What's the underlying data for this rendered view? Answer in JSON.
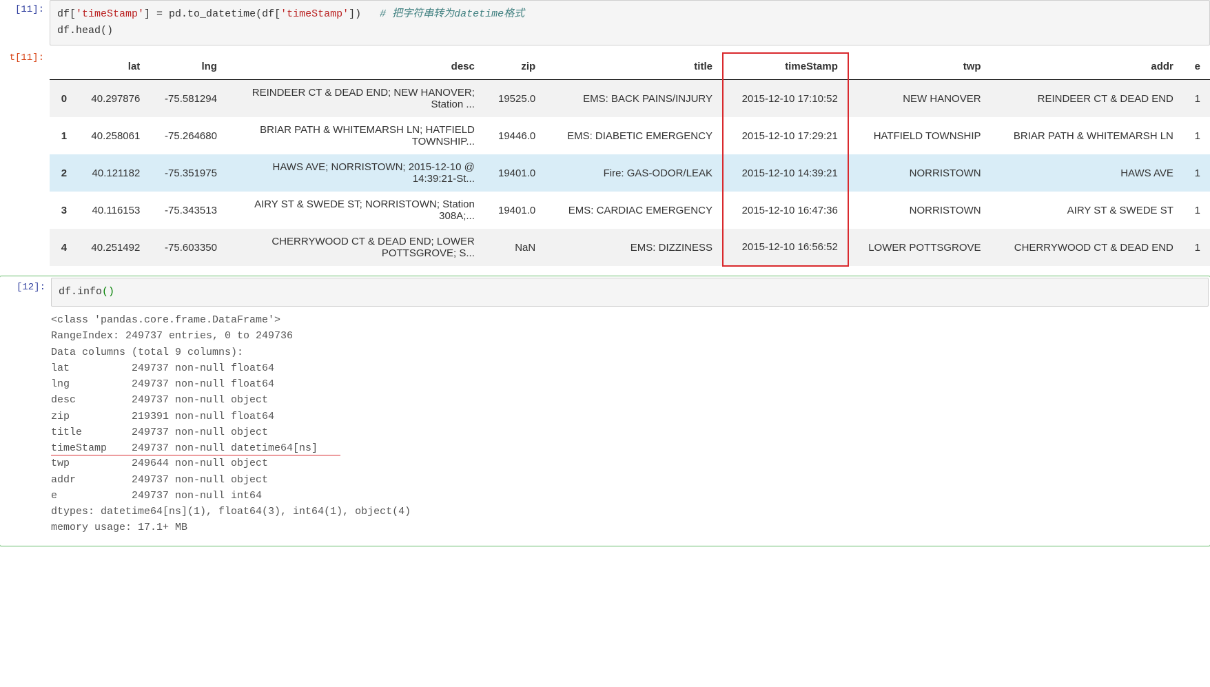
{
  "cell11": {
    "in_prompt": "[11]:",
    "out_prompt": "t[11]:",
    "code_line1": {
      "pre": "df[",
      "s1": "'timeStamp'",
      "mid1": "] = pd.to_datetime(df[",
      "s2": "'timeStamp'",
      "mid2": "])   ",
      "comment": "# 把字符串转为datetime格式"
    },
    "code_line2": "df.head()",
    "table": {
      "columns": [
        "",
        "lat",
        "lng",
        "desc",
        "zip",
        "title",
        "timeStamp",
        "twp",
        "addr",
        "e"
      ],
      "highlight_col": "timeStamp",
      "highlight_row_idx": 2,
      "rows": [
        {
          "idx": "0",
          "lat": "40.297876",
          "lng": "-75.581294",
          "desc": "REINDEER CT & DEAD END; NEW HANOVER; Station ...",
          "zip": "19525.0",
          "title": "EMS: BACK PAINS/INJURY",
          "timeStamp": "2015-12-10 17:10:52",
          "twp": "NEW HANOVER",
          "addr": "REINDEER CT & DEAD END",
          "e": "1"
        },
        {
          "idx": "1",
          "lat": "40.258061",
          "lng": "-75.264680",
          "desc": "BRIAR PATH & WHITEMARSH LN; HATFIELD TOWNSHIP...",
          "zip": "19446.0",
          "title": "EMS: DIABETIC EMERGENCY",
          "timeStamp": "2015-12-10 17:29:21",
          "twp": "HATFIELD TOWNSHIP",
          "addr": "BRIAR PATH & WHITEMARSH LN",
          "e": "1"
        },
        {
          "idx": "2",
          "lat": "40.121182",
          "lng": "-75.351975",
          "desc": "HAWS AVE; NORRISTOWN; 2015-12-10 @ 14:39:21-St...",
          "zip": "19401.0",
          "title": "Fire: GAS-ODOR/LEAK",
          "timeStamp": "2015-12-10 14:39:21",
          "twp": "NORRISTOWN",
          "addr": "HAWS AVE",
          "e": "1"
        },
        {
          "idx": "3",
          "lat": "40.116153",
          "lng": "-75.343513",
          "desc": "AIRY ST & SWEDE ST; NORRISTOWN; Station 308A;...",
          "zip": "19401.0",
          "title": "EMS: CARDIAC EMERGENCY",
          "timeStamp": "2015-12-10 16:47:36",
          "twp": "NORRISTOWN",
          "addr": "AIRY ST & SWEDE ST",
          "e": "1"
        },
        {
          "idx": "4",
          "lat": "40.251492",
          "lng": "-75.603350",
          "desc": "CHERRYWOOD CT & DEAD END; LOWER POTTSGROVE; S...",
          "zip": "NaN",
          "title": "EMS: DIZZINESS",
          "timeStamp": "2015-12-10 16:56:52",
          "twp": "LOWER POTTSGROVE",
          "addr": "CHERRYWOOD CT & DEAD END",
          "e": "1"
        }
      ]
    }
  },
  "cell12": {
    "in_prompt": "[12]:",
    "code": "df.info()",
    "output": [
      "<class 'pandas.core.frame.DataFrame'>",
      "RangeIndex: 249737 entries, 0 to 249736",
      "Data columns (total 9 columns):",
      "lat          249737 non-null float64",
      "lng          249737 non-null float64",
      "desc         249737 non-null object",
      "zip          219391 non-null float64",
      "title        249737 non-null object",
      "timeStamp    249737 non-null datetime64[ns]",
      "twp          249644 non-null object",
      "addr         249737 non-null object",
      "e            249737 non-null int64",
      "dtypes: datetime64[ns](1), float64(3), int64(1), object(4)",
      "memory usage: 17.1+ MB"
    ],
    "underline_after_line_idx": 8
  },
  "style": {
    "highlight_col_border": "#d9292d",
    "row_hl_bg": "#d9edf7",
    "underline_color": "#d9292d"
  }
}
